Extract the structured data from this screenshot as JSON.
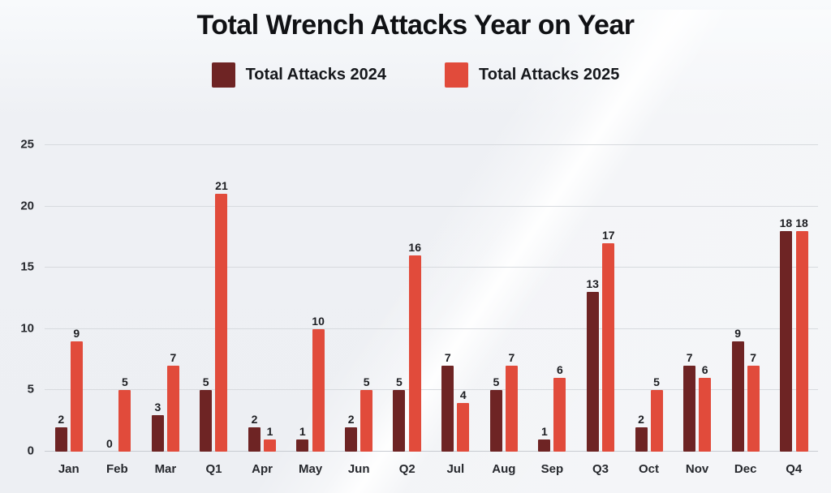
{
  "title": "Total Wrench Attacks Year on Year",
  "legend": [
    {
      "label": "Total Attacks 2024",
      "color": "#6e2424"
    },
    {
      "label": "Total Attacks 2025",
      "color": "#e14b3b"
    }
  ],
  "colors": {
    "series_2024": "#6e2424",
    "series_2025": "#e14b3b",
    "gridline": "#d7dade",
    "background": "#edeff3",
    "text": "#16181c"
  },
  "chart_data": {
    "type": "bar",
    "title": "Total Wrench Attacks Year on Year",
    "categories": [
      "Jan",
      "Feb",
      "Mar",
      "Q1",
      "Apr",
      "May",
      "Jun",
      "Q2",
      "Jul",
      "Aug",
      "Sep",
      "Q3",
      "Oct",
      "Nov",
      "Dec",
      "Q4"
    ],
    "series": [
      {
        "name": "Total Attacks 2024",
        "color": "#6e2424",
        "values": [
          2,
          0,
          3,
          5,
          2,
          1,
          2,
          5,
          7,
          5,
          1,
          13,
          2,
          7,
          9,
          18
        ]
      },
      {
        "name": "Total Attacks 2025",
        "color": "#e14b3b",
        "values": [
          9,
          5,
          7,
          21,
          1,
          10,
          5,
          16,
          4,
          7,
          6,
          17,
          5,
          6,
          7,
          18
        ]
      }
    ],
    "xlabel": "",
    "ylabel": "",
    "ylim": [
      0,
      25
    ],
    "yticks": [
      0,
      5,
      10,
      15,
      20,
      25
    ],
    "grid": true,
    "legend_position": "top",
    "value_labels": true
  }
}
